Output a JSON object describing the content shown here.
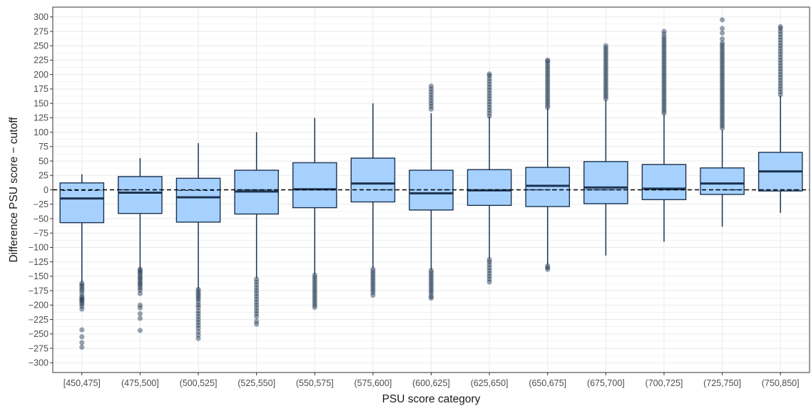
{
  "chart_data": {
    "type": "box",
    "xlabel": "PSU score category",
    "ylabel": "Difference PSU score − cutoff",
    "ylim": [
      -317,
      317
    ],
    "yticks": [
      -300,
      -275,
      -250,
      -225,
      -200,
      -175,
      -150,
      -125,
      -100,
      -75,
      -50,
      -25,
      0,
      25,
      50,
      75,
      100,
      125,
      150,
      175,
      200,
      225,
      250,
      275,
      300
    ],
    "grid": true,
    "reference_line": {
      "y": 0,
      "style": "dashed"
    },
    "colors": {
      "box_fill": "#a6d1ff",
      "box_stroke": "#1b3350",
      "outlier": "#1b3350",
      "grid": "#ebebeb"
    },
    "categories": [
      "[450,475]",
      "(475,500]",
      "(500,525]",
      "(525,550]",
      "(550,575]",
      "(575,600]",
      "(600,625]",
      "(625,650]",
      "(650,675]",
      "(675,700]",
      "(700,725]",
      "(725,750]",
      "(750,850]"
    ],
    "boxes": [
      {
        "category": "[450,475]",
        "q1": -57,
        "median": -15,
        "q3": 12,
        "whisker_low": -160,
        "whisker_high": 27,
        "mean": -1,
        "outliers": [
          -162,
          -165,
          -168,
          -172,
          -175,
          -180,
          -185,
          -188,
          -190,
          -192,
          -195,
          -198,
          -202,
          -207,
          -243,
          -255,
          -265,
          -273
        ]
      },
      {
        "category": "(475,500]",
        "q1": -41,
        "median": -5,
        "q3": 23,
        "whisker_low": -137,
        "whisker_high": 55,
        "mean": 0,
        "outliers": [
          -138,
          -140,
          -143,
          -146,
          -150,
          -153,
          -156,
          -160,
          -163,
          -166,
          -170,
          -174,
          -180,
          -200,
          -205,
          -215,
          -223,
          -244
        ]
      },
      {
        "category": "(500,525]",
        "q1": -56,
        "median": -13,
        "q3": 20,
        "whisker_low": -172,
        "whisker_high": 81,
        "mean": -1,
        "outliers": [
          -173,
          -176,
          -180,
          -183,
          -187,
          -190,
          -195,
          -200,
          -204,
          -210,
          -215,
          -220,
          -225,
          -230,
          -235,
          -240,
          -246,
          -252,
          -258
        ]
      },
      {
        "category": "(525,550]",
        "q1": -42,
        "median": -3,
        "q3": 34,
        "whisker_low": -153,
        "whisker_high": 100,
        "mean": 0,
        "outliers": [
          -155,
          -160,
          -165,
          -170,
          -175,
          -180,
          -185,
          -190,
          -195,
          -200,
          -205,
          -210,
          -215,
          -220,
          -228,
          -233
        ]
      },
      {
        "category": "(550,575]",
        "q1": -31,
        "median": 1,
        "q3": 47,
        "whisker_low": -147,
        "whisker_high": 125,
        "mean": 0,
        "outliers": [
          -148,
          -152,
          -156,
          -160,
          -164,
          -168,
          -172,
          -176,
          -180,
          -184,
          -188,
          -192,
          -196,
          -200,
          -204
        ]
      },
      {
        "category": "(575,600]",
        "q1": -21,
        "median": 11,
        "q3": 55,
        "whisker_low": -136,
        "whisker_high": 150,
        "mean": 0,
        "outliers": [
          -138,
          -142,
          -146,
          -150,
          -154,
          -158,
          -162,
          -166,
          -170,
          -174,
          -178,
          -183
        ]
      },
      {
        "category": "(600,625]",
        "q1": -35,
        "median": -6,
        "q3": 34,
        "whisker_low": -139,
        "whisker_high": 133,
        "mean": 0,
        "outliers": [
          -140,
          -144,
          -148,
          -152,
          -156,
          -160,
          -164,
          -168,
          -172,
          -176,
          -180,
          -185,
          -188,
          140,
          145,
          150,
          155,
          160,
          165,
          170,
          175,
          180
        ]
      },
      {
        "category": "(625,650]",
        "q1": -27,
        "median": -1,
        "q3": 35,
        "whisker_low": -119,
        "whisker_high": 127,
        "mean": 0,
        "outliers": [
          -121,
          -125,
          -130,
          -135,
          -140,
          -145,
          -150,
          -155,
          -160,
          128,
          133,
          138,
          143,
          148,
          153,
          158,
          163,
          168,
          173,
          178,
          183,
          188,
          193,
          198,
          201
        ]
      },
      {
        "category": "(650,675]",
        "q1": -29,
        "median": 7,
        "q3": 39,
        "whisker_low": -130,
        "whisker_high": 142,
        "mean": 0,
        "outliers": [
          -132,
          -135,
          -138,
          143,
          147,
          151,
          155,
          159,
          163,
          167,
          171,
          175,
          179,
          183,
          187,
          191,
          195,
          199,
          203,
          207,
          211,
          215,
          219,
          223,
          225
        ]
      },
      {
        "category": "(675,700]",
        "q1": -24,
        "median": 4,
        "q3": 49,
        "whisker_low": -114,
        "whisker_high": 156,
        "mean": 0,
        "outliers": [
          158,
          162,
          166,
          170,
          174,
          178,
          182,
          186,
          190,
          194,
          198,
          202,
          206,
          210,
          214,
          218,
          222,
          226,
          230,
          234,
          238,
          242,
          246,
          250
        ]
      },
      {
        "category": "(700,725]",
        "q1": -17,
        "median": 2,
        "q3": 44,
        "whisker_low": -90,
        "whisker_high": 131,
        "mean": 0,
        "outliers": [
          133,
          137,
          141,
          145,
          149,
          153,
          157,
          161,
          165,
          169,
          173,
          177,
          181,
          185,
          189,
          193,
          197,
          201,
          205,
          209,
          213,
          217,
          221,
          225,
          229,
          233,
          237,
          241,
          245,
          249,
          253,
          257,
          261,
          265,
          270,
          275
        ]
      },
      {
        "category": "(725,750]",
        "q1": -8,
        "median": 11,
        "q3": 38,
        "whisker_low": -64,
        "whisker_high": 104,
        "mean": 0,
        "outliers": [
          107,
          111,
          115,
          119,
          123,
          127,
          131,
          135,
          139,
          143,
          147,
          151,
          155,
          159,
          163,
          167,
          171,
          175,
          179,
          183,
          187,
          191,
          195,
          199,
          203,
          207,
          211,
          215,
          219,
          223,
          227,
          231,
          235,
          239,
          243,
          247,
          251,
          255,
          262,
          272,
          280,
          295
        ]
      },
      {
        "category": "(750,850]",
        "q1": -2,
        "median": 32,
        "q3": 65,
        "whisker_low": -40,
        "whisker_high": 163,
        "mean": 0,
        "outliers": [
          165,
          170,
          175,
          180,
          185,
          190,
          195,
          200,
          205,
          210,
          215,
          220,
          225,
          230,
          235,
          240,
          245,
          250,
          255,
          260,
          265,
          270,
          275,
          280,
          283
        ]
      }
    ]
  }
}
